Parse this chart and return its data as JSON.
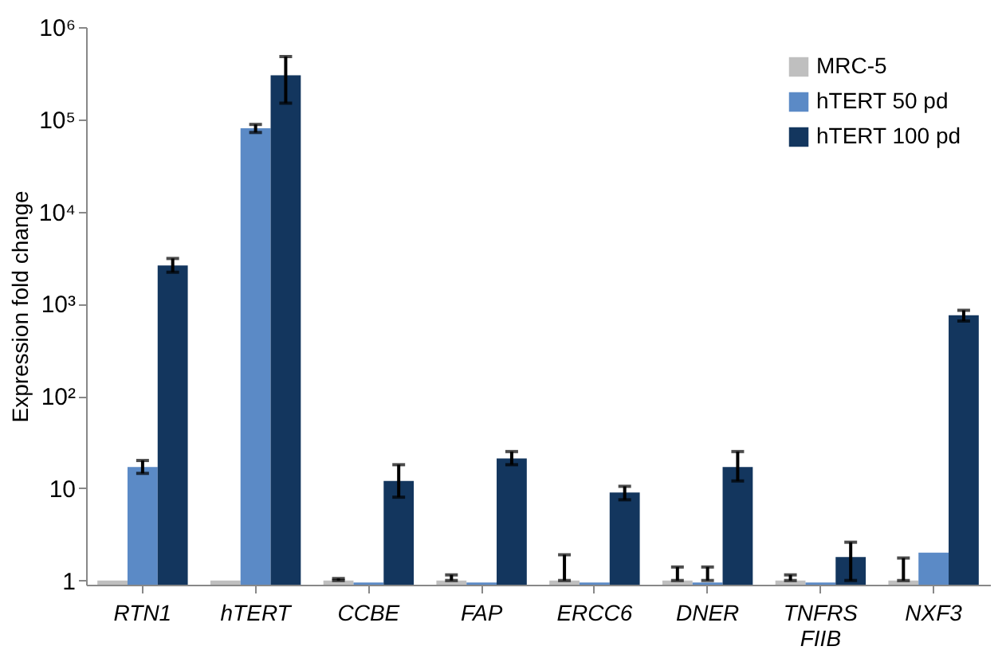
{
  "chart_data": {
    "type": "bar",
    "ylabel": "Expression fold change",
    "categories": [
      "RTN1",
      "hTERT",
      "CCBE",
      "FAP",
      "ERCC6",
      "DNER",
      "TNFRS FIIB",
      "NXF3"
    ],
    "series": [
      {
        "name": "MRC-5",
        "color": "#bfbfbf",
        "values": [
          1,
          1,
          1,
          1,
          1,
          1,
          1,
          1
        ],
        "errors": [
          null,
          null,
          [
            1,
            1.05
          ],
          [
            1,
            1.15
          ],
          [
            1,
            1.9
          ],
          [
            1,
            1.4
          ],
          [
            1,
            1.15
          ],
          [
            1,
            1.75
          ]
        ]
      },
      {
        "name": "hTERT 50 pd",
        "color": "#5b8ac6",
        "values": [
          17,
          80000,
          0.95,
          0.95,
          0.95,
          0.95,
          0.95,
          2
        ],
        "errors": [
          [
            14.5,
            20
          ],
          [
            72000,
            88000
          ],
          null,
          null,
          null,
          [
            1,
            1.4
          ],
          null,
          null
        ]
      },
      {
        "name": "hTERT 100 pd",
        "color": "#13365e",
        "values": [
          2600,
          300000,
          12,
          21,
          9,
          17,
          1.8,
          750
        ],
        "errors": [
          [
            2200,
            3100
          ],
          [
            150000,
            480000
          ],
          [
            8,
            18
          ],
          [
            18,
            25
          ],
          [
            7.5,
            10.5
          ],
          [
            12,
            25
          ],
          [
            1,
            2.6
          ],
          [
            650,
            850
          ]
        ]
      }
    ],
    "log": true,
    "ylim": [
      0.9,
      1000000
    ],
    "yticks": [
      1,
      10,
      {
        "value": 100,
        "label": "10²"
      },
      {
        "value": 1000,
        "label": "10³"
      },
      {
        "value": 10000,
        "label": "10⁴"
      },
      {
        "value": 100000,
        "label": "10⁵"
      },
      {
        "value": 1000000,
        "label": "10⁶"
      }
    ],
    "grid": false,
    "legend": "top right"
  }
}
